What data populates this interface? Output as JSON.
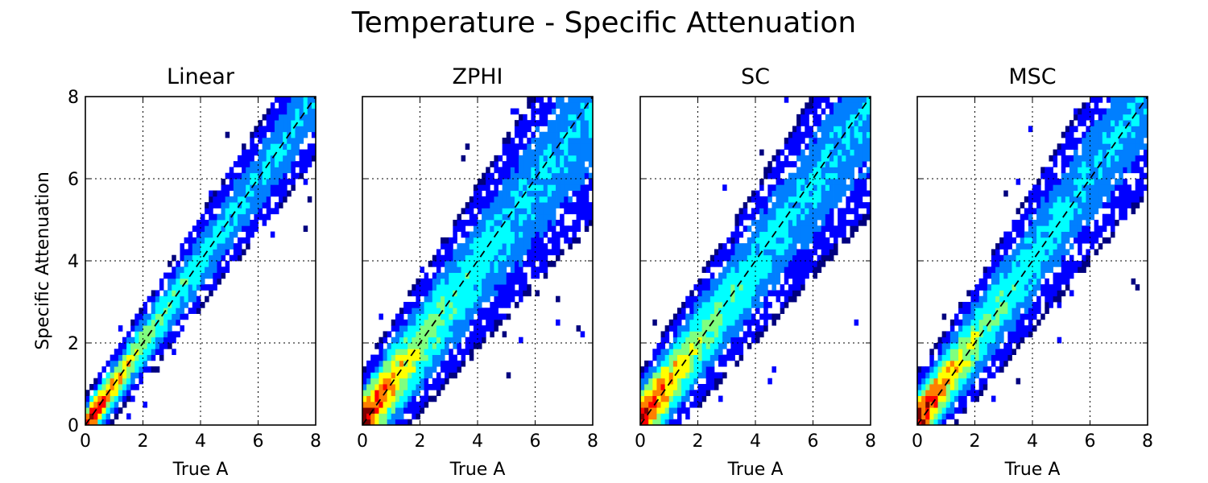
{
  "figure": {
    "title": "Temperature - Specific Attenuation"
  },
  "chart_data": [
    {
      "type": "heatmap",
      "title": "Linear",
      "xlabel": "True A",
      "ylabel": "Specific Attenuation",
      "xlim": [
        0,
        8
      ],
      "ylim": [
        0,
        8
      ],
      "xticks": [
        0,
        2,
        4,
        6,
        8
      ],
      "yticks": [
        0,
        2,
        4,
        6,
        8
      ],
      "grid": true,
      "reference_line": {
        "x": [
          0,
          8
        ],
        "y": [
          0,
          8
        ],
        "style": "dashed"
      },
      "ridge": {
        "slope": 1.0,
        "intercept": 0.0,
        "spread": 0.45
      },
      "colormap": [
        "#00007f",
        "#0000ff",
        "#007fff",
        "#00ffff",
        "#7fff7f",
        "#ffff00",
        "#ff7f00",
        "#ff0000",
        "#7f0000"
      ]
    },
    {
      "type": "heatmap",
      "title": "ZPHI",
      "xlabel": "True A",
      "ylabel": "",
      "xlim": [
        0,
        8
      ],
      "ylim": [
        0,
        8
      ],
      "xticks": [
        0,
        2,
        4,
        6,
        8
      ],
      "yticks": [
        0,
        2,
        4,
        6,
        8
      ],
      "grid": true,
      "reference_line": {
        "x": [
          0,
          8
        ],
        "y": [
          0,
          8
        ],
        "style": "dashed"
      },
      "ridge": {
        "slope": 0.95,
        "intercept": 0.1,
        "spread": 0.8
      },
      "colormap": [
        "#00007f",
        "#0000ff",
        "#007fff",
        "#00ffff",
        "#7fff7f",
        "#ffff00",
        "#ff7f00",
        "#ff0000",
        "#7f0000"
      ]
    },
    {
      "type": "heatmap",
      "title": "SC",
      "xlabel": "True A",
      "ylabel": "",
      "xlim": [
        0,
        8
      ],
      "ylim": [
        0,
        8
      ],
      "xticks": [
        0,
        2,
        4,
        6,
        8
      ],
      "yticks": [
        0,
        2,
        4,
        6,
        8
      ],
      "grid": true,
      "reference_line": {
        "x": [
          0,
          8
        ],
        "y": [
          0,
          8
        ],
        "style": "dashed"
      },
      "ridge": {
        "slope": 0.95,
        "intercept": 0.15,
        "spread": 0.75
      },
      "colormap": [
        "#00007f",
        "#0000ff",
        "#007fff",
        "#00ffff",
        "#7fff7f",
        "#ffff00",
        "#ff7f00",
        "#ff0000",
        "#7f0000"
      ]
    },
    {
      "type": "heatmap",
      "title": "MSC",
      "xlabel": "True A",
      "ylabel": "",
      "xlim": [
        0,
        8
      ],
      "ylim": [
        0,
        8
      ],
      "xticks": [
        0,
        2,
        4,
        6,
        8
      ],
      "yticks": [
        0,
        2,
        4,
        6,
        8
      ],
      "grid": true,
      "reference_line": {
        "x": [
          0,
          8
        ],
        "y": [
          0,
          8
        ],
        "style": "dashed"
      },
      "ridge": {
        "slope": 1.0,
        "intercept": 0.1,
        "spread": 0.7
      },
      "colormap": [
        "#00007f",
        "#0000ff",
        "#007fff",
        "#00ffff",
        "#7fff7f",
        "#ffff00",
        "#ff7f00",
        "#ff0000",
        "#7f0000"
      ]
    }
  ]
}
